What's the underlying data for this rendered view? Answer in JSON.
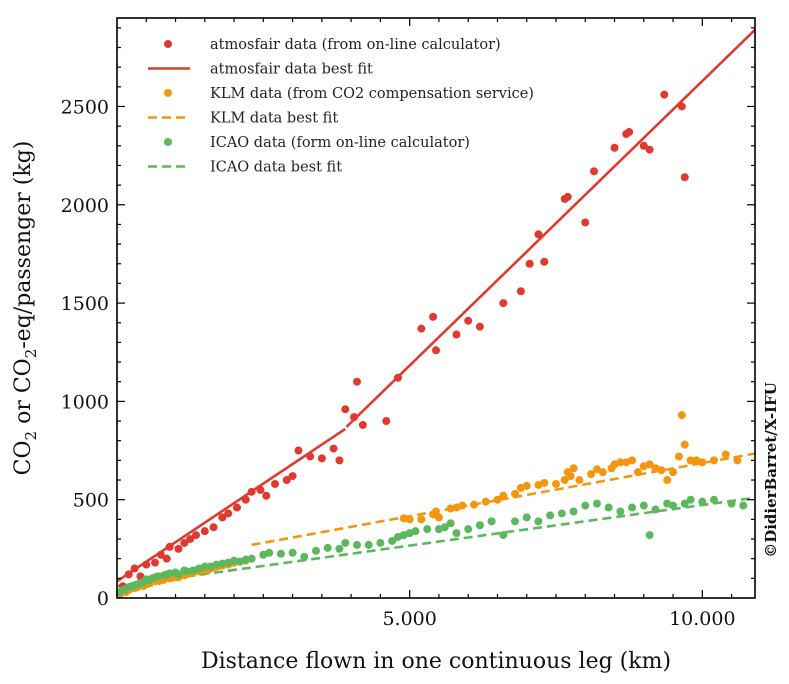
{
  "chart_data": {
    "type": "scatter",
    "title": "",
    "xlabel": "Distance flown in one continuous leg (km)",
    "ylabel_parts": [
      "CO",
      "2",
      " or CO",
      "2",
      "-eq/passenger (kg)"
    ],
    "credit": "©DidierBarret/X-IFU",
    "xlim": [
      0,
      10900
    ],
    "ylim": [
      0,
      2950
    ],
    "x_ticks": [
      5000,
      10000
    ],
    "x_tick_labels": [
      "5.000",
      "10.000"
    ],
    "y_ticks": [
      0,
      500,
      1000,
      1500,
      2000,
      2500
    ],
    "y_tick_labels": [
      "0",
      "500",
      "1000",
      "1500",
      "2000",
      "2500"
    ],
    "grid": false,
    "legend_position": "top-left",
    "legend": [
      {
        "label": "atmosfair data (from on-line calculator)",
        "kind": "marker",
        "color": "#e03a2f"
      },
      {
        "label": "atmosfair data best fit",
        "kind": "solid",
        "color": "#e03a2f"
      },
      {
        "label": "KLM data (from CO2 compensation service)",
        "kind": "marker",
        "color": "#f5960f"
      },
      {
        "label": "KLM data best fit",
        "kind": "dashed",
        "color": "#f5960f"
      },
      {
        "label": "ICAO data (form on-line calculator)",
        "kind": "marker",
        "color": "#5cb85c"
      },
      {
        "label": "ICAO data best fit",
        "kind": "dashed",
        "color": "#5cb85c"
      }
    ],
    "series": [
      {
        "name": "atmosfair data (from on-line calculator)",
        "color": "#e03a2f",
        "points": [
          [
            100,
            60
          ],
          [
            200,
            120
          ],
          [
            300,
            150
          ],
          [
            400,
            110
          ],
          [
            500,
            170
          ],
          [
            650,
            180
          ],
          [
            750,
            220
          ],
          [
            850,
            200
          ],
          [
            900,
            260
          ],
          [
            1050,
            250
          ],
          [
            1150,
            280
          ],
          [
            1250,
            300
          ],
          [
            1350,
            320
          ],
          [
            1500,
            340
          ],
          [
            1650,
            360
          ],
          [
            1800,
            410
          ],
          [
            1900,
            430
          ],
          [
            2050,
            460
          ],
          [
            2200,
            500
          ],
          [
            2300,
            540
          ],
          [
            2450,
            550
          ],
          [
            2550,
            520
          ],
          [
            2700,
            580
          ],
          [
            2900,
            600
          ],
          [
            3000,
            620
          ],
          [
            3100,
            750
          ],
          [
            3300,
            720
          ],
          [
            3500,
            710
          ],
          [
            3700,
            760
          ],
          [
            3800,
            700
          ],
          [
            3900,
            960
          ],
          [
            4050,
            920
          ],
          [
            4100,
            1100
          ],
          [
            4200,
            880
          ],
          [
            4600,
            900
          ],
          [
            4800,
            1120
          ],
          [
            5200,
            1370
          ],
          [
            5400,
            1430
          ],
          [
            5450,
            1260
          ],
          [
            5800,
            1340
          ],
          [
            6000,
            1410
          ],
          [
            6200,
            1380
          ],
          [
            6600,
            1500
          ],
          [
            6900,
            1560
          ],
          [
            7050,
            1700
          ],
          [
            7200,
            1850
          ],
          [
            7300,
            1710
          ],
          [
            7650,
            2030
          ],
          [
            7700,
            2040
          ],
          [
            8000,
            1910
          ],
          [
            8150,
            2170
          ],
          [
            8500,
            2290
          ],
          [
            8700,
            2360
          ],
          [
            8750,
            2370
          ],
          [
            9000,
            2300
          ],
          [
            9100,
            2280
          ],
          [
            9350,
            2560
          ],
          [
            9650,
            2500
          ],
          [
            9700,
            2140
          ]
        ]
      },
      {
        "name": "KLM data (from CO2 compensation service)",
        "color": "#f5960f",
        "points": [
          [
            50,
            20
          ],
          [
            150,
            30
          ],
          [
            200,
            40
          ],
          [
            300,
            50
          ],
          [
            350,
            55
          ],
          [
            450,
            60
          ],
          [
            500,
            70
          ],
          [
            550,
            75
          ],
          [
            650,
            85
          ],
          [
            700,
            90
          ],
          [
            800,
            95
          ],
          [
            900,
            100
          ],
          [
            1000,
            110
          ],
          [
            1050,
            105
          ],
          [
            1100,
            120
          ],
          [
            1150,
            115
          ],
          [
            1250,
            125
          ],
          [
            1300,
            130
          ],
          [
            1400,
            135
          ],
          [
            1500,
            145
          ],
          [
            1550,
            140
          ],
          [
            1600,
            150
          ],
          [
            1700,
            160
          ],
          [
            1800,
            165
          ],
          [
            1900,
            170
          ],
          [
            2000,
            180
          ],
          [
            2100,
            185
          ],
          [
            2200,
            190
          ],
          [
            2300,
            200
          ],
          [
            4900,
            405
          ],
          [
            5000,
            400
          ],
          [
            5200,
            400
          ],
          [
            5400,
            425
          ],
          [
            5450,
            440
          ],
          [
            5500,
            410
          ],
          [
            5700,
            455
          ],
          [
            5800,
            460
          ],
          [
            5900,
            470
          ],
          [
            6100,
            475
          ],
          [
            6300,
            490
          ],
          [
            6500,
            500
          ],
          [
            6600,
            520
          ],
          [
            6800,
            530
          ],
          [
            6900,
            560
          ],
          [
            7000,
            570
          ],
          [
            7200,
            575
          ],
          [
            7300,
            585
          ],
          [
            7500,
            580
          ],
          [
            7650,
            600
          ],
          [
            7700,
            640
          ],
          [
            7750,
            620
          ],
          [
            7800,
            660
          ],
          [
            7900,
            600
          ],
          [
            8100,
            630
          ],
          [
            8200,
            655
          ],
          [
            8300,
            640
          ],
          [
            8450,
            660
          ],
          [
            8500,
            680
          ],
          [
            8600,
            690
          ],
          [
            8700,
            690
          ],
          [
            8800,
            700
          ],
          [
            8900,
            640
          ],
          [
            9000,
            670
          ],
          [
            9100,
            680
          ],
          [
            9200,
            660
          ],
          [
            9300,
            650
          ],
          [
            9400,
            600
          ],
          [
            9500,
            640
          ],
          [
            9600,
            720
          ],
          [
            9650,
            930
          ],
          [
            9700,
            780
          ],
          [
            9800,
            700
          ],
          [
            9900,
            700
          ],
          [
            10000,
            690
          ],
          [
            10200,
            700
          ],
          [
            10400,
            730
          ],
          [
            10600,
            700
          ]
        ]
      },
      {
        "name": "ICAO data (form on-line calculator)",
        "color": "#5cb85c",
        "points": [
          [
            50,
            30
          ],
          [
            100,
            40
          ],
          [
            150,
            45
          ],
          [
            200,
            55
          ],
          [
            250,
            60
          ],
          [
            300,
            65
          ],
          [
            350,
            70
          ],
          [
            400,
            75
          ],
          [
            450,
            80
          ],
          [
            500,
            95
          ],
          [
            550,
            90
          ],
          [
            600,
            100
          ],
          [
            650,
            105
          ],
          [
            700,
            110
          ],
          [
            800,
            115
          ],
          [
            850,
            120
          ],
          [
            900,
            125
          ],
          [
            1000,
            130
          ],
          [
            1050,
            120
          ],
          [
            1150,
            140
          ],
          [
            1200,
            135
          ],
          [
            1300,
            140
          ],
          [
            1400,
            150
          ],
          [
            1500,
            160
          ],
          [
            1600,
            160
          ],
          [
            1700,
            170
          ],
          [
            1800,
            175
          ],
          [
            1900,
            180
          ],
          [
            2000,
            190
          ],
          [
            2100,
            185
          ],
          [
            2200,
            195
          ],
          [
            2300,
            200
          ],
          [
            2500,
            220
          ],
          [
            2600,
            230
          ],
          [
            2800,
            225
          ],
          [
            3000,
            230
          ],
          [
            3200,
            210
          ],
          [
            3400,
            240
          ],
          [
            3600,
            255
          ],
          [
            3800,
            250
          ],
          [
            3900,
            280
          ],
          [
            4100,
            270
          ],
          [
            4300,
            270
          ],
          [
            4500,
            280
          ],
          [
            4700,
            290
          ],
          [
            4800,
            310
          ],
          [
            4900,
            320
          ],
          [
            5000,
            330
          ],
          [
            5100,
            340
          ],
          [
            5300,
            350
          ],
          [
            5500,
            350
          ],
          [
            5600,
            360
          ],
          [
            5700,
            380
          ],
          [
            5800,
            330
          ],
          [
            6000,
            350
          ],
          [
            6200,
            370
          ],
          [
            6400,
            390
          ],
          [
            6600,
            320
          ],
          [
            6800,
            390
          ],
          [
            7000,
            410
          ],
          [
            7200,
            390
          ],
          [
            7400,
            420
          ],
          [
            7600,
            430
          ],
          [
            7800,
            440
          ],
          [
            8000,
            470
          ],
          [
            8200,
            480
          ],
          [
            8400,
            460
          ],
          [
            8600,
            440
          ],
          [
            8800,
            460
          ],
          [
            9000,
            470
          ],
          [
            9100,
            320
          ],
          [
            9200,
            450
          ],
          [
            9400,
            480
          ],
          [
            9500,
            470
          ],
          [
            9700,
            480
          ],
          [
            9800,
            500
          ],
          [
            10000,
            490
          ],
          [
            10200,
            500
          ],
          [
            10500,
            480
          ],
          [
            10700,
            470
          ]
        ]
      }
    ],
    "fits": [
      {
        "name": "atmosfair data best fit",
        "color": "#e03a2f",
        "style": "solid",
        "segments": [
          [
            [
              0,
              85
            ],
            [
              3900,
              860
            ]
          ],
          [
            [
              3920,
              870
            ],
            [
              10900,
              2890
            ]
          ]
        ]
      },
      {
        "name": "KLM data best fit",
        "color": "#f5960f",
        "style": "dashed",
        "segments": [
          [
            [
              0,
              20
            ],
            [
              2300,
              190
            ]
          ],
          [
            [
              2300,
              270
            ],
            [
              10900,
              735
            ]
          ]
        ]
      },
      {
        "name": "ICAO data best fit",
        "color": "#5cb85c",
        "style": "dashed",
        "segments": [
          [
            [
              0,
              60
            ],
            [
              10900,
              510
            ]
          ]
        ]
      }
    ]
  }
}
